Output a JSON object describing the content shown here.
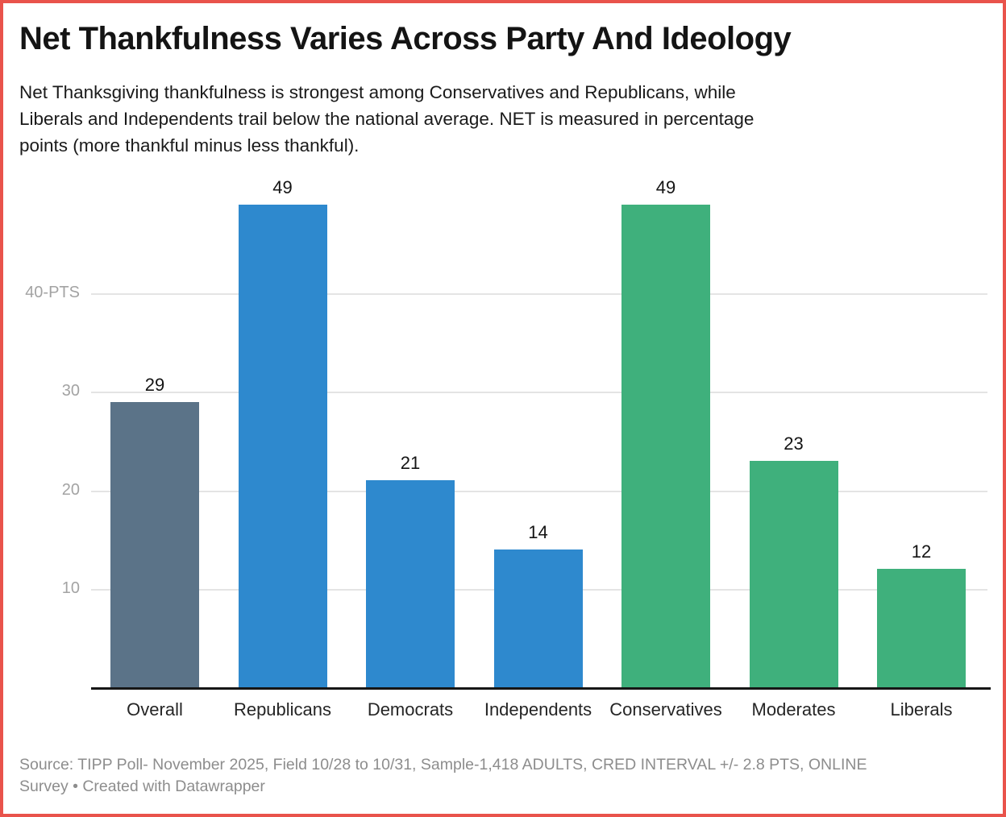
{
  "header": {
    "title": "Net Thankfulness Varies Across Party And Ideology",
    "subtitle_lines": [
      "Net Thanksgiving thankfulness is strongest among Conservatives and Republicans, while",
      "Liberals and Independents trail below the national average. NET is measured in percentage",
      "points (more thankful minus less thankful)."
    ]
  },
  "footer": {
    "source_lines": [
      "Source: TIPP Poll- November 2025, Field 10/28 to 10/31, Sample-1,418 ADULTS, CRED INTERVAL +/- 2.8 PTS, ONLINE",
      "Survey • Created with Datawrapper"
    ]
  },
  "colors": {
    "frame_border": "#e9534b",
    "bar_overall": "#5b7388",
    "bar_party": "#2e89ce",
    "bar_ideology": "#3fb07c",
    "gridline": "#e4e4e4",
    "axis_line": "#161616",
    "ytick_label": "#a3a3a3",
    "value_label": "#141414",
    "category_label": "#252525",
    "source_text": "#8d8d8d"
  },
  "chart_data": {
    "type": "bar",
    "title": "Net Thankfulness Varies Across Party And Ideology",
    "categories": [
      "Overall",
      "Republicans",
      "Democrats",
      "Independents",
      "Conservatives",
      "Moderates",
      "Liberals"
    ],
    "values": [
      29,
      49,
      21,
      14,
      49,
      23,
      12
    ],
    "bar_colors": [
      "#5b7388",
      "#2e89ce",
      "#2e89ce",
      "#2e89ce",
      "#3fb07c",
      "#3fb07c",
      "#3fb07c"
    ],
    "value_labels": [
      "29",
      "49",
      "21",
      "14",
      "49",
      "23",
      "12"
    ],
    "xlabel": "",
    "ylabel": "PTS",
    "yticks": [
      10,
      20,
      30,
      40
    ],
    "ytick_labels": [
      "10",
      "20",
      "30",
      "40-PTS"
    ],
    "ylim": [
      0,
      50
    ],
    "grid": "horizontal",
    "legend": "none"
  }
}
